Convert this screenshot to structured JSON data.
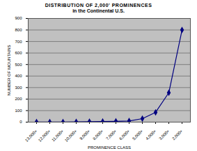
{
  "chart_data": {
    "type": "line",
    "title": "DISTRIBUTION OF 2,000' PROMINENCES",
    "subtitle": "in the Continental U.S.",
    "x_label": "PROMINENCE CLASS",
    "y_label": "NUMBER OF MOUNTAINS",
    "categories": [
      "13,000+",
      "12,000+",
      "11,000+",
      "10,000+",
      "9,000+",
      "8,000+",
      "7,000+",
      "6,000+",
      "5,000+",
      "4,000+",
      "3,000+",
      "2,000+"
    ],
    "values": [
      1,
      1,
      1,
      2,
      4,
      5,
      7,
      10,
      30,
      85,
      255,
      800
    ],
    "color": "#000080",
    "marker": "diamond",
    "ylim": [
      0,
      900
    ],
    "yticks": [
      0,
      100,
      200,
      300,
      400,
      500,
      600,
      700,
      800,
      900
    ],
    "grid": true
  }
}
